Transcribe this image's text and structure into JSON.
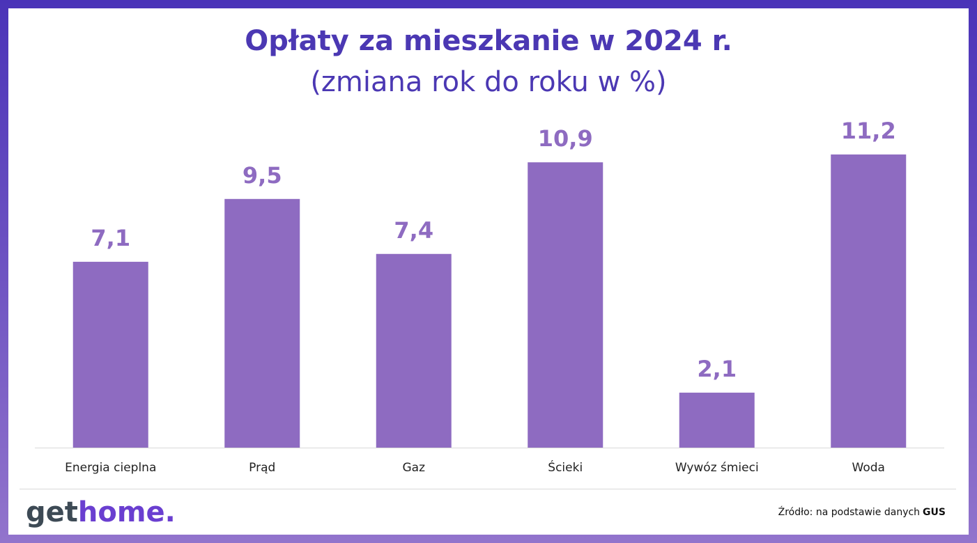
{
  "chart_data": {
    "type": "bar",
    "title": "Opłaty za mieszkanie w 2024 r.",
    "subtitle": "(zmiana rok do roku w %)",
    "categories": [
      "Energia cieplna",
      "Prąd",
      "Gaz",
      "Ścieki",
      "Wywóz śmieci",
      "Woda"
    ],
    "values": [
      7.1,
      9.5,
      7.4,
      10.9,
      2.1,
      11.2
    ],
    "value_labels": [
      "7,1",
      "9,5",
      "7,4",
      "10,9",
      "2,1",
      "11,2"
    ],
    "color": "#8e6bc1"
  },
  "footer": {
    "brand": [
      "get",
      "home."
    ],
    "source": "Źródło: na podstawie danych",
    "source_bold": "GUS"
  }
}
